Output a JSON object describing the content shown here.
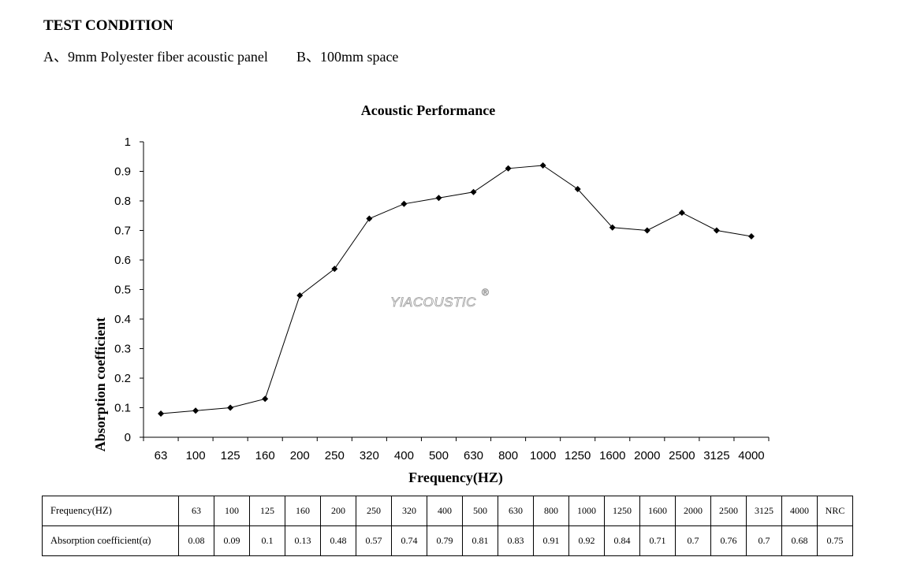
{
  "heading": "TEST CONDITION",
  "conditions": [
    "A、9mm  Polyester fiber acoustic panel",
    "B、100mm  space"
  ],
  "watermark": "YIACOUSTIC",
  "watermark_mark": "®",
  "chart_data": {
    "type": "line",
    "title": "Acoustic Performance",
    "xlabel": "Frequency(HZ)",
    "ylabel": "Absorption  coefficient",
    "categories": [
      "63",
      "100",
      "125",
      "160",
      "200",
      "250",
      "320",
      "400",
      "500",
      "630",
      "800",
      "1000",
      "1250",
      "1600",
      "2000",
      "2500",
      "3125",
      "4000"
    ],
    "values": [
      0.08,
      0.09,
      0.1,
      0.13,
      0.48,
      0.57,
      0.74,
      0.79,
      0.81,
      0.83,
      0.91,
      0.92,
      0.84,
      0.71,
      0.7,
      0.76,
      0.7,
      0.68
    ],
    "ylim": [
      0,
      1
    ],
    "yticks": [
      "0",
      "0.1",
      "0.2",
      "0.3",
      "0.4",
      "0.5",
      "0.6",
      "0.7",
      "0.8",
      "0.9",
      "1"
    ],
    "grid": false,
    "legend": "none",
    "line_color": "#000000",
    "marker": "diamond"
  },
  "table": {
    "row1_header": "Frequency(HZ)",
    "row1": [
      "63",
      "100",
      "125",
      "160",
      "200",
      "250",
      "320",
      "400",
      "500",
      "630",
      "800",
      "1000",
      "1250",
      "1600",
      "2000",
      "2500",
      "3125",
      "4000",
      "NRC"
    ],
    "row2_header": "Absorption  coefficient(α)",
    "row2": [
      "0.08",
      "0.09",
      "0.1",
      "0.13",
      "0.48",
      "0.57",
      "0.74",
      "0.79",
      "0.81",
      "0.83",
      "0.91",
      "0.92",
      "0.84",
      "0.71",
      "0.7",
      "0.76",
      "0.7",
      "0.68",
      "0.75"
    ]
  }
}
